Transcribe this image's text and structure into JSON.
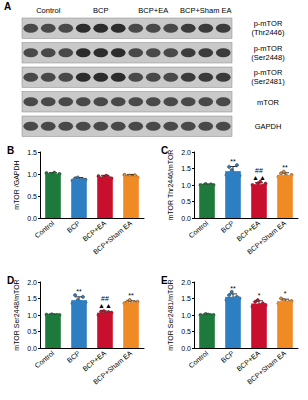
{
  "blot": {
    "panel": "A",
    "columns": [
      "Control",
      "BCP",
      "BCP+EA",
      "BCP+Sham EA"
    ],
    "rows": [
      [
        "p-mTOR",
        "(Thr2446)"
      ],
      [
        "p-mTOR",
        "(Ser2448)"
      ],
      [
        "p-mTOR",
        "(Ser2481)"
      ],
      [
        "mTOR"
      ],
      [
        "GAPDH"
      ]
    ]
  },
  "chart_data": [
    {
      "type": "bar",
      "panel": "B",
      "y_label": "mTOR /GAPDH",
      "categories": [
        "Control",
        "BCP",
        "BCP+EA",
        "BCP+Sham EA"
      ],
      "colors": [
        "#1e7a3c",
        "#2e7fc1",
        "#c8102e",
        "#f08a24"
      ],
      "values": [
        1.0,
        0.88,
        0.93,
        0.95
      ],
      "errors": [
        0.03,
        0.04,
        0.04,
        0.04
      ],
      "points": [
        [
          1.02,
          0.98,
          1.0,
          1.03,
          0.97,
          1.0
        ],
        [
          0.85,
          0.9,
          0.92,
          0.86,
          0.88,
          0.87
        ],
        [
          0.95,
          0.9,
          0.93,
          0.96,
          0.92,
          0.9
        ],
        [
          0.98,
          0.93,
          0.96,
          0.94,
          0.97,
          0.92
        ]
      ],
      "annotations": [
        [],
        [],
        [],
        []
      ],
      "ylim": [
        0,
        1.5
      ],
      "yticks": [
        {
          "value": 0,
          "label": "0.0"
        },
        0.5,
        {
          "value": 1,
          "label": "1.0"
        },
        1.5
      ]
    },
    {
      "type": "bar",
      "panel": "C",
      "y_label": "mTOR Thr2446/mTOR",
      "categories": [
        "Control",
        "BCP",
        "BCP+EA",
        "BCP+Sham EA"
      ],
      "colors": [
        "#1e7a3c",
        "#2e7fc1",
        "#c8102e",
        "#f08a24"
      ],
      "values": [
        1.0,
        1.42,
        1.02,
        1.3
      ],
      "errors": [
        0.03,
        0.14,
        0.05,
        0.07
      ],
      "points": [
        [
          1.0,
          0.98,
          1.03,
          0.97,
          1.02,
          1.0
        ],
        [
          1.3,
          1.55,
          1.45,
          1.35,
          1.6,
          1.28
        ],
        [
          1.0,
          0.95,
          1.05,
          1.1,
          0.98,
          1.04
        ],
        [
          1.25,
          1.35,
          1.4,
          1.28,
          1.22,
          1.3
        ]
      ],
      "annotations": [
        [],
        [
          "**"
        ],
        [
          "##",
          "▲▲"
        ],
        [
          "**"
        ]
      ],
      "ylim": [
        0,
        2
      ],
      "yticks": [
        {
          "value": 0,
          "label": "0.0"
        },
        0.5,
        {
          "value": 1,
          "label": "1.0"
        },
        1.5,
        {
          "value": 2,
          "label": "2.0"
        }
      ]
    },
    {
      "type": "bar",
      "panel": "D",
      "y_label": "mTOR Ser2448/mTOR",
      "categories": [
        "Control",
        "BCP",
        "BCP+EA",
        "BCP+Sham EA"
      ],
      "colors": [
        "#1e7a3c",
        "#2e7fc1",
        "#c8102e",
        "#f08a24"
      ],
      "values": [
        1.0,
        1.45,
        1.07,
        1.38
      ],
      "errors": [
        0.03,
        0.1,
        0.05,
        0.05
      ],
      "points": [
        [
          1.01,
          0.98,
          1.02,
          0.99,
          1.0,
          1.0
        ],
        [
          1.35,
          1.6,
          1.45,
          1.4,
          1.55,
          1.38
        ],
        [
          1.0,
          1.1,
          1.12,
          1.05,
          1.08,
          1.07
        ],
        [
          1.35,
          1.4,
          1.45,
          1.32,
          1.38,
          1.4
        ]
      ],
      "annotations": [
        [],
        [
          "**"
        ],
        [
          "##",
          "▲▲"
        ],
        [
          "**"
        ]
      ],
      "ylim": [
        0,
        2
      ],
      "yticks": [
        {
          "value": 0,
          "label": "0.0"
        },
        0.5,
        {
          "value": 1,
          "label": "1.0"
        },
        1.5,
        {
          "value": 2,
          "label": "2.0"
        }
      ]
    },
    {
      "type": "bar",
      "panel": "E",
      "y_label": "mTOR Ser2481/mTOR",
      "categories": [
        "Control",
        "BCP",
        "BCP+EA",
        "BCP+Sham EA"
      ],
      "colors": [
        "#1e7a3c",
        "#2e7fc1",
        "#c8102e",
        "#f08a24"
      ],
      "values": [
        1.0,
        1.55,
        1.35,
        1.42
      ],
      "errors": [
        0.03,
        0.09,
        0.08,
        0.06
      ],
      "points": [
        [
          1.0,
          0.97,
          1.03,
          1.01,
          0.99,
          1.0
        ],
        [
          1.45,
          1.6,
          1.7,
          1.5,
          1.55,
          1.5
        ],
        [
          1.25,
          1.4,
          1.45,
          1.3,
          1.35,
          1.3
        ],
        [
          1.35,
          1.5,
          1.45,
          1.38,
          1.4,
          1.42
        ]
      ],
      "annotations": [
        [],
        [
          "**"
        ],
        [
          "*"
        ],
        [
          "*"
        ]
      ],
      "ylim": [
        0,
        2
      ],
      "yticks": [
        {
          "value": 0,
          "label": "0.0"
        },
        0.5,
        {
          "value": 1,
          "label": "1.0"
        },
        1.5,
        {
          "value": 2,
          "label": "2.0"
        }
      ]
    }
  ]
}
